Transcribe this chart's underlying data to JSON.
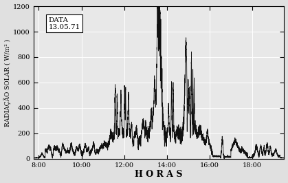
{
  "title": "",
  "xlabel": "H O R A S",
  "ylabel": "RADIAÇÃO SOLAR ( W/m² )",
  "annotation": "DATA\n13.05.71",
  "xlim": [
    7.75,
    19.5
  ],
  "ylim": [
    0,
    1200
  ],
  "yticks": [
    0,
    200,
    400,
    600,
    800,
    1000,
    1200
  ],
  "xticks": [
    8.0,
    10.0,
    12.0,
    14.0,
    16.0,
    18.0
  ],
  "xticklabels": [
    "8:00",
    "10:00",
    "12:00",
    "14:00",
    "16:00",
    "18:00"
  ],
  "bg_color": "#e8e8e8",
  "line_color": "#111111",
  "grid_color": "#ffffff",
  "figure_bg": "#e0e0e0"
}
